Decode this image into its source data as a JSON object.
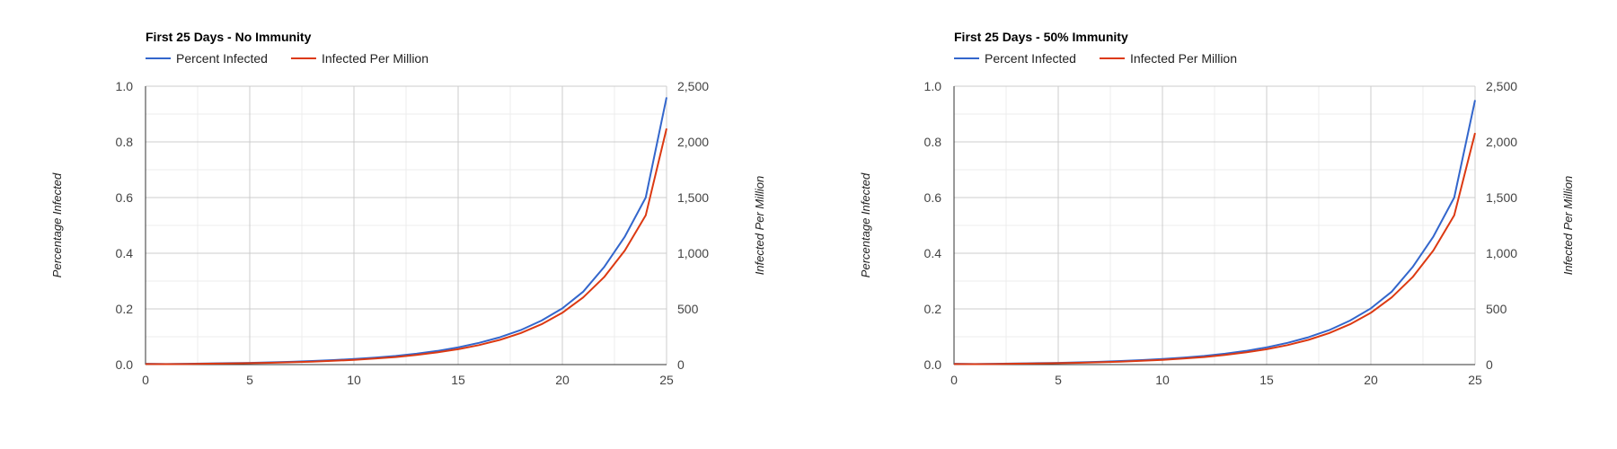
{
  "chart_data": [
    {
      "type": "line",
      "title": "First 25 Days - No Immunity",
      "xlabel": "",
      "ylabel": "Percentage Infected",
      "y2label": "Infected Per Million",
      "xlim": [
        0,
        25
      ],
      "ylim": [
        0,
        1.0
      ],
      "y2lim": [
        0,
        2500
      ],
      "x_ticks": [
        0,
        5,
        10,
        15,
        20,
        25
      ],
      "y_ticks": [
        "0.0",
        "0.2",
        "0.4",
        "0.6",
        "0.8",
        "1.0"
      ],
      "y2_ticks": [
        "0",
        "500",
        "1,000",
        "1,500",
        "2,000",
        "2,500"
      ],
      "grid": true,
      "legend_position": "top-left",
      "x": [
        0,
        1,
        2,
        3,
        4,
        5,
        6,
        7,
        8,
        9,
        10,
        11,
        12,
        13,
        14,
        15,
        16,
        17,
        18,
        19,
        20,
        21,
        22,
        23,
        24,
        25
      ],
      "series": [
        {
          "name": "Percent Infected",
          "axis": "left",
          "color": "#3366cc",
          "values": [
            0.003,
            0.002,
            0.003,
            0.004,
            0.005,
            0.006,
            0.008,
            0.01,
            0.013,
            0.016,
            0.02,
            0.025,
            0.031,
            0.039,
            0.049,
            0.062,
            0.078,
            0.098,
            0.124,
            0.158,
            0.202,
            0.262,
            0.35,
            0.46,
            0.6,
            0.96
          ]
        },
        {
          "name": "Infected Per Million",
          "axis": "right",
          "color": "#dc3912",
          "values": [
            5,
            4,
            5,
            8,
            10,
            13,
            16,
            21,
            27,
            34,
            43,
            54,
            68,
            86,
            110,
            138,
            175,
            222,
            283,
            362,
            465,
            603,
            785,
            1025,
            1340,
            2120
          ]
        }
      ]
    },
    {
      "type": "line",
      "title": "First 25 Days - 50% Immunity",
      "xlabel": "",
      "ylabel": "Percentage Infected",
      "y2label": "Infected Per Million",
      "xlim": [
        0,
        25
      ],
      "ylim": [
        0,
        1.0
      ],
      "y2lim": [
        0,
        2500
      ],
      "x_ticks": [
        0,
        5,
        10,
        15,
        20,
        25
      ],
      "y_ticks": [
        "0.0",
        "0.2",
        "0.4",
        "0.6",
        "0.8",
        "1.0"
      ],
      "y2_ticks": [
        "0",
        "500",
        "1,000",
        "1,500",
        "2,000",
        "2,500"
      ],
      "grid": true,
      "legend_position": "top-left",
      "x": [
        0,
        1,
        2,
        3,
        4,
        5,
        6,
        7,
        8,
        9,
        10,
        11,
        12,
        13,
        14,
        15,
        16,
        17,
        18,
        19,
        20,
        21,
        22,
        23,
        24,
        25
      ],
      "series": [
        {
          "name": "Percent Infected",
          "axis": "left",
          "color": "#3366cc",
          "values": [
            0.003,
            0.002,
            0.003,
            0.004,
            0.005,
            0.006,
            0.008,
            0.01,
            0.013,
            0.016,
            0.02,
            0.025,
            0.031,
            0.039,
            0.049,
            0.062,
            0.078,
            0.098,
            0.124,
            0.158,
            0.202,
            0.262,
            0.35,
            0.46,
            0.6,
            0.95
          ]
        },
        {
          "name": "Infected Per Million",
          "axis": "right",
          "color": "#dc3912",
          "values": [
            5,
            4,
            5,
            8,
            10,
            13,
            16,
            21,
            27,
            34,
            43,
            54,
            68,
            86,
            110,
            138,
            175,
            222,
            283,
            362,
            465,
            603,
            785,
            1025,
            1340,
            2080
          ]
        }
      ]
    }
  ]
}
